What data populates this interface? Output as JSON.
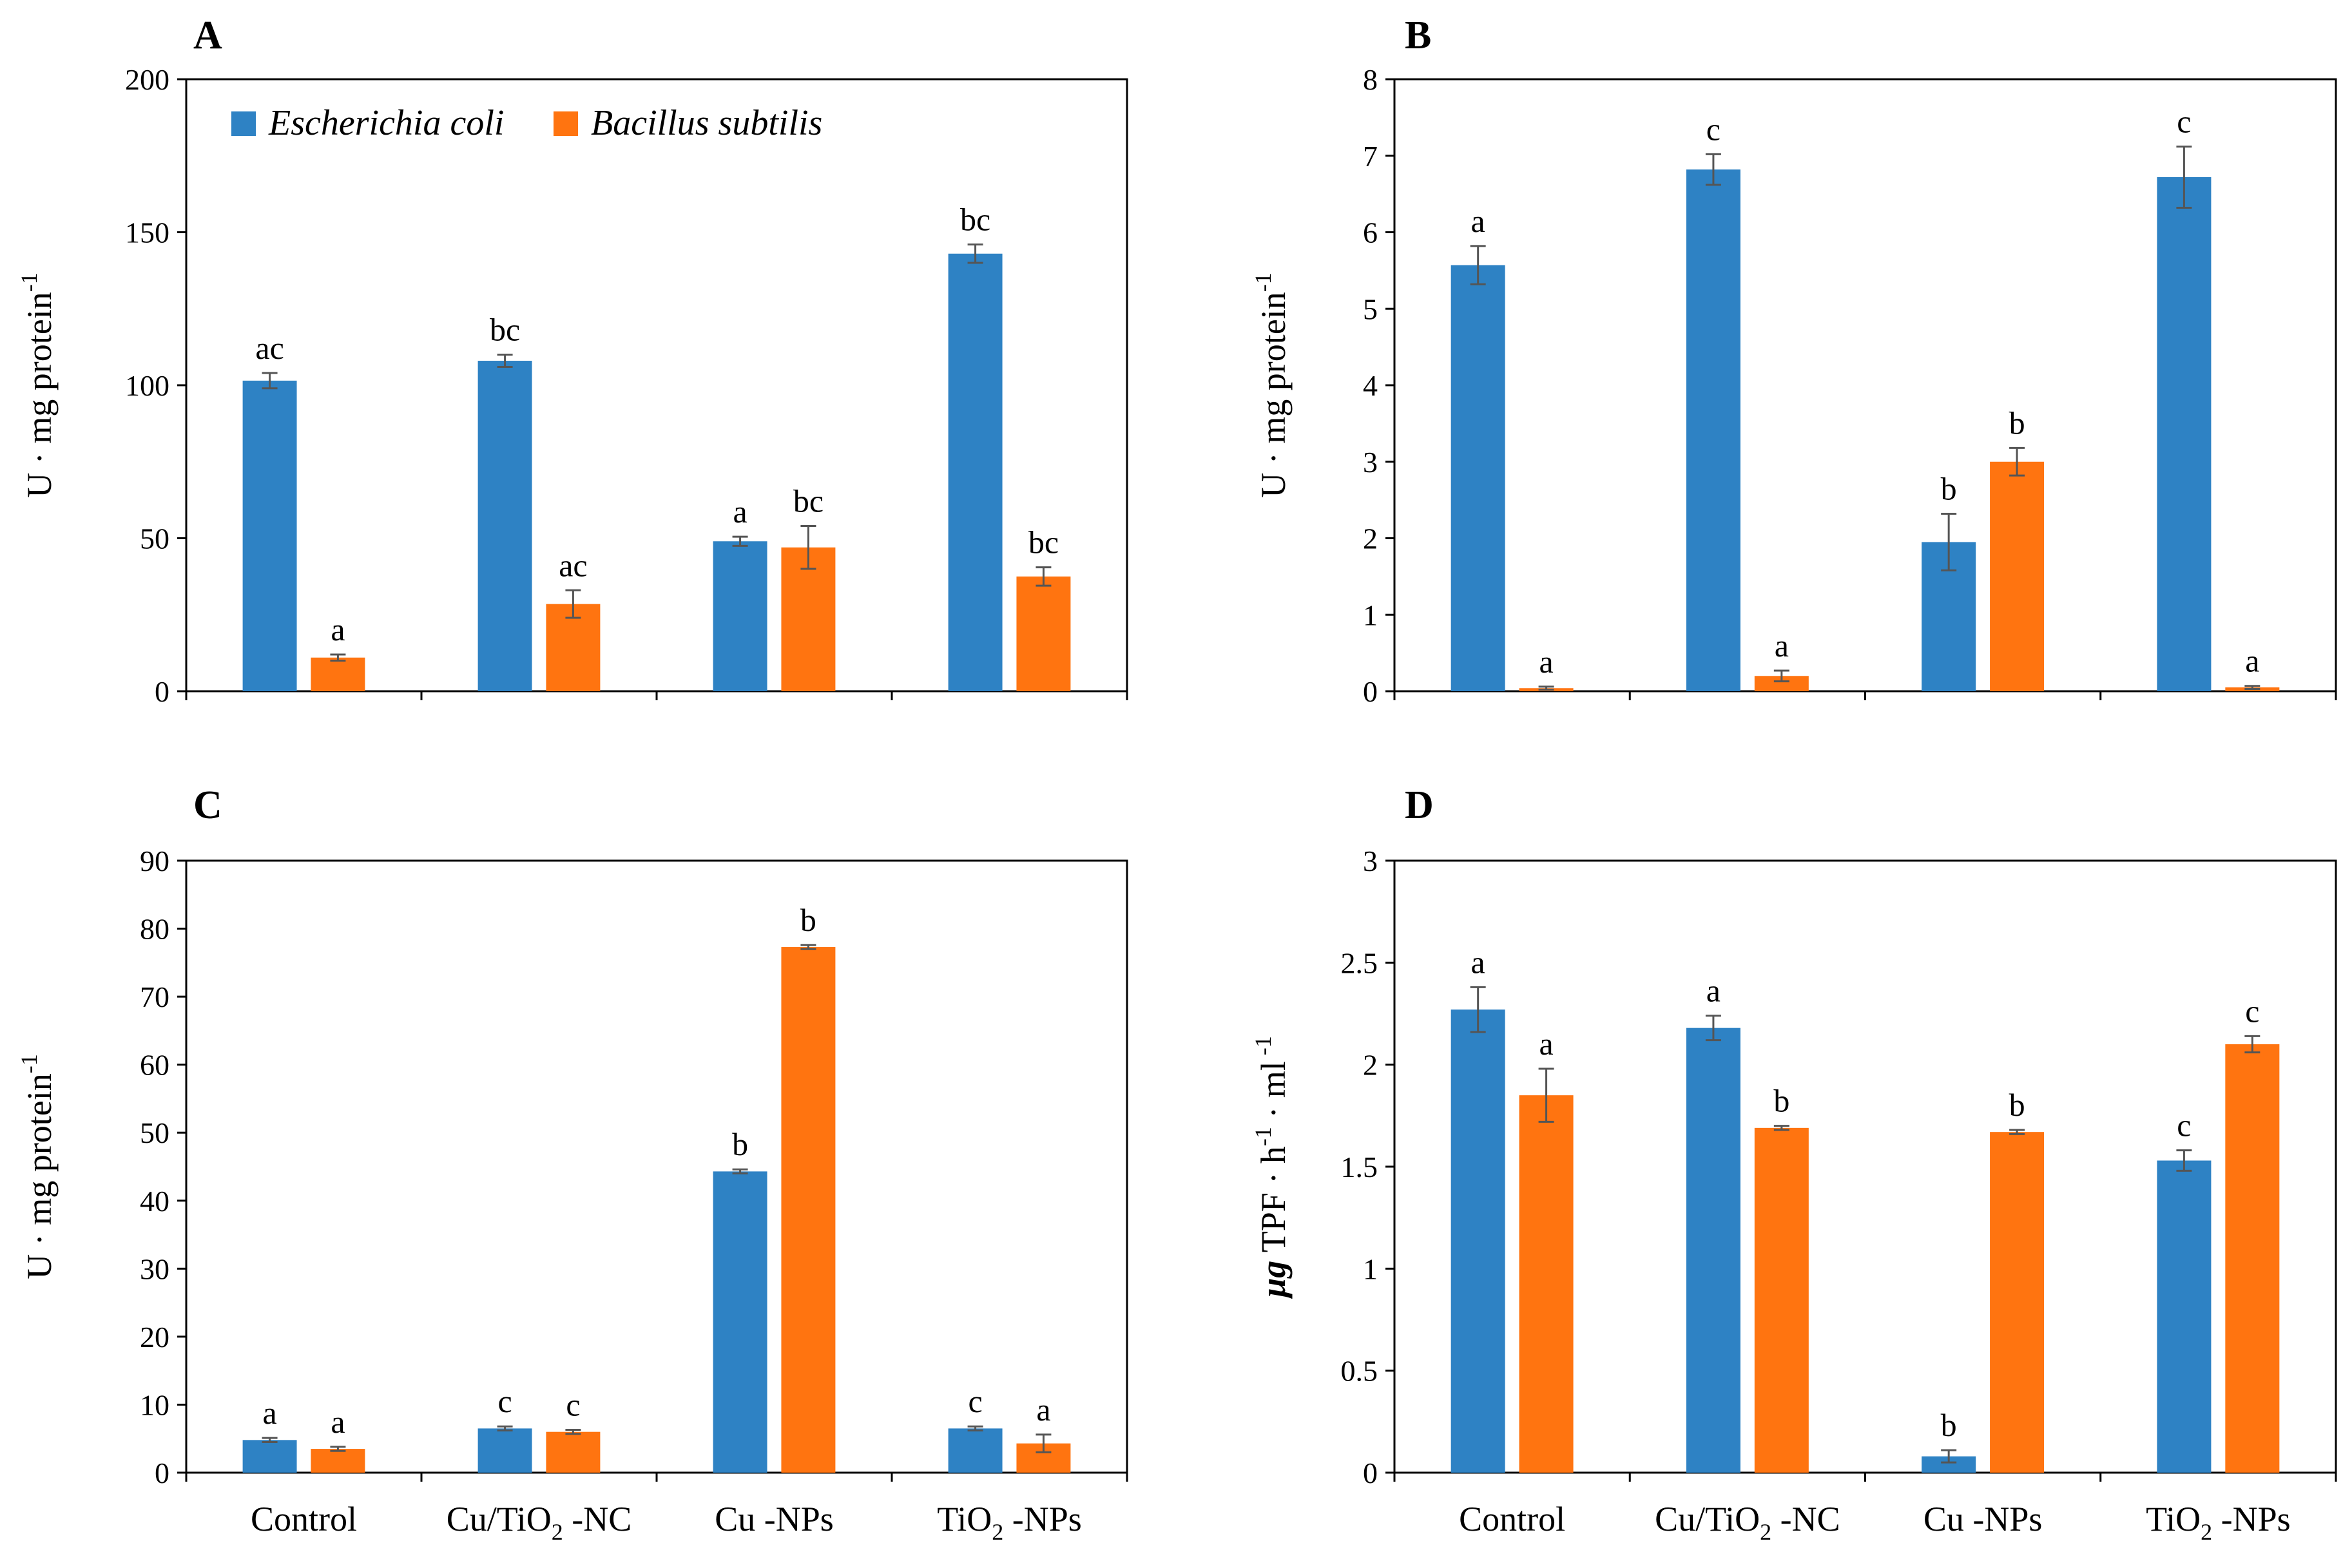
{
  "chart_data": [
    {
      "type": "bar",
      "panel": "A",
      "categories": [
        "Control",
        "Cu/TiO2-NC",
        "Cu-NPs",
        "TiO2-NPs"
      ],
      "ylabel": "U · mg protein-1",
      "ylabel_parts": [
        "U · mg protein",
        "-1"
      ],
      "ylim": [
        0,
        200
      ],
      "yticks": [
        "0",
        "50",
        "100",
        "150",
        "200"
      ],
      "show_category_labels": false,
      "legend": true,
      "series": [
        {
          "name": "Escherichia coli",
          "color": "#2E82C4",
          "values": [
            101.5,
            108,
            49,
            143
          ],
          "errors": [
            2.5,
            2,
            1.5,
            3
          ],
          "labels": [
            "ac",
            "bc",
            "a",
            "bc"
          ]
        },
        {
          "name": "Bacillus subtilis",
          "color": "#FF7410",
          "values": [
            11,
            28.5,
            47,
            37.5
          ],
          "errors": [
            1,
            4.5,
            7,
            3
          ],
          "labels": [
            "a",
            "ac",
            "bc",
            "bc"
          ]
        }
      ]
    },
    {
      "type": "bar",
      "panel": "B",
      "categories": [
        "Control",
        "Cu/TiO2-NC",
        "Cu-NPs",
        "TiO2-NPs"
      ],
      "ylabel": "U · mg protein-1",
      "ylabel_parts": [
        "U · mg protein",
        "-1"
      ],
      "ylim": [
        0,
        8
      ],
      "yticks": [
        "0",
        "1",
        "2",
        "3",
        "4",
        "5",
        "6",
        "7",
        "8"
      ],
      "show_category_labels": false,
      "legend": false,
      "series": [
        {
          "name": "Escherichia coli",
          "color": "#2E82C4",
          "values": [
            5.57,
            6.82,
            1.95,
            6.72
          ],
          "errors": [
            0.25,
            0.2,
            0.37,
            0.4
          ],
          "labels": [
            "a",
            "c",
            "b",
            "c"
          ]
        },
        {
          "name": "Bacillus subtilis",
          "color": "#FF7410",
          "values": [
            0.04,
            0.2,
            3.0,
            0.05
          ],
          "errors": [
            0.02,
            0.07,
            0.18,
            0.02
          ],
          "labels": [
            "a",
            "a",
            "b",
            "a"
          ]
        }
      ]
    },
    {
      "type": "bar",
      "panel": "C",
      "categories": [
        "Control",
        "Cu/TiO2-NC",
        "Cu-NPs",
        "TiO2-NPs"
      ],
      "ylabel": "U · mg protein-1",
      "ylabel_parts": [
        "U · mg protein",
        "-1"
      ],
      "ylim": [
        0,
        90
      ],
      "yticks": [
        "0",
        "10",
        "20",
        "30",
        "40",
        "50",
        "60",
        "70",
        "80",
        "90"
      ],
      "show_category_labels": true,
      "legend": false,
      "series": [
        {
          "name": "Escherichia coli",
          "color": "#2E82C4",
          "values": [
            4.8,
            6.5,
            44.3,
            6.5
          ],
          "errors": [
            0.3,
            0.3,
            0.3,
            0.3
          ],
          "labels": [
            "a",
            "c",
            "b",
            "c"
          ]
        },
        {
          "name": "Bacillus subtilis",
          "color": "#FF7410",
          "values": [
            3.5,
            6.0,
            77.3,
            4.3
          ],
          "errors": [
            0.3,
            0.3,
            0.3,
            1.3
          ],
          "labels": [
            "a",
            "c",
            "b",
            "a"
          ]
        }
      ]
    },
    {
      "type": "bar",
      "panel": "D",
      "categories": [
        "Control",
        "Cu/TiO2-NC",
        "Cu-NPs",
        "TiO2-NPs"
      ],
      "ylabel": "μg TPF · h-1 · ml-1",
      "ylabel_parts": [
        "μg",
        "TPF · h",
        "-1",
        " · ml",
        " -1"
      ],
      "ylim": [
        0,
        3
      ],
      "yticks": [
        "0",
        "0.5",
        "1",
        "1.5",
        "2",
        "2.5",
        "3"
      ],
      "show_category_labels": true,
      "legend": false,
      "series": [
        {
          "name": "Escherichia coli",
          "color": "#2E82C4",
          "values": [
            2.27,
            2.18,
            0.08,
            1.53
          ],
          "errors": [
            0.11,
            0.06,
            0.03,
            0.05
          ],
          "labels": [
            "a",
            "a",
            "b",
            "c"
          ]
        },
        {
          "name": "Bacillus subtilis",
          "color": "#FF7410",
          "values": [
            1.85,
            1.69,
            1.67,
            2.1
          ],
          "errors": [
            0.13,
            0.01,
            0.01,
            0.04
          ],
          "labels": [
            "a",
            "b",
            "b",
            "c"
          ]
        }
      ]
    }
  ]
}
